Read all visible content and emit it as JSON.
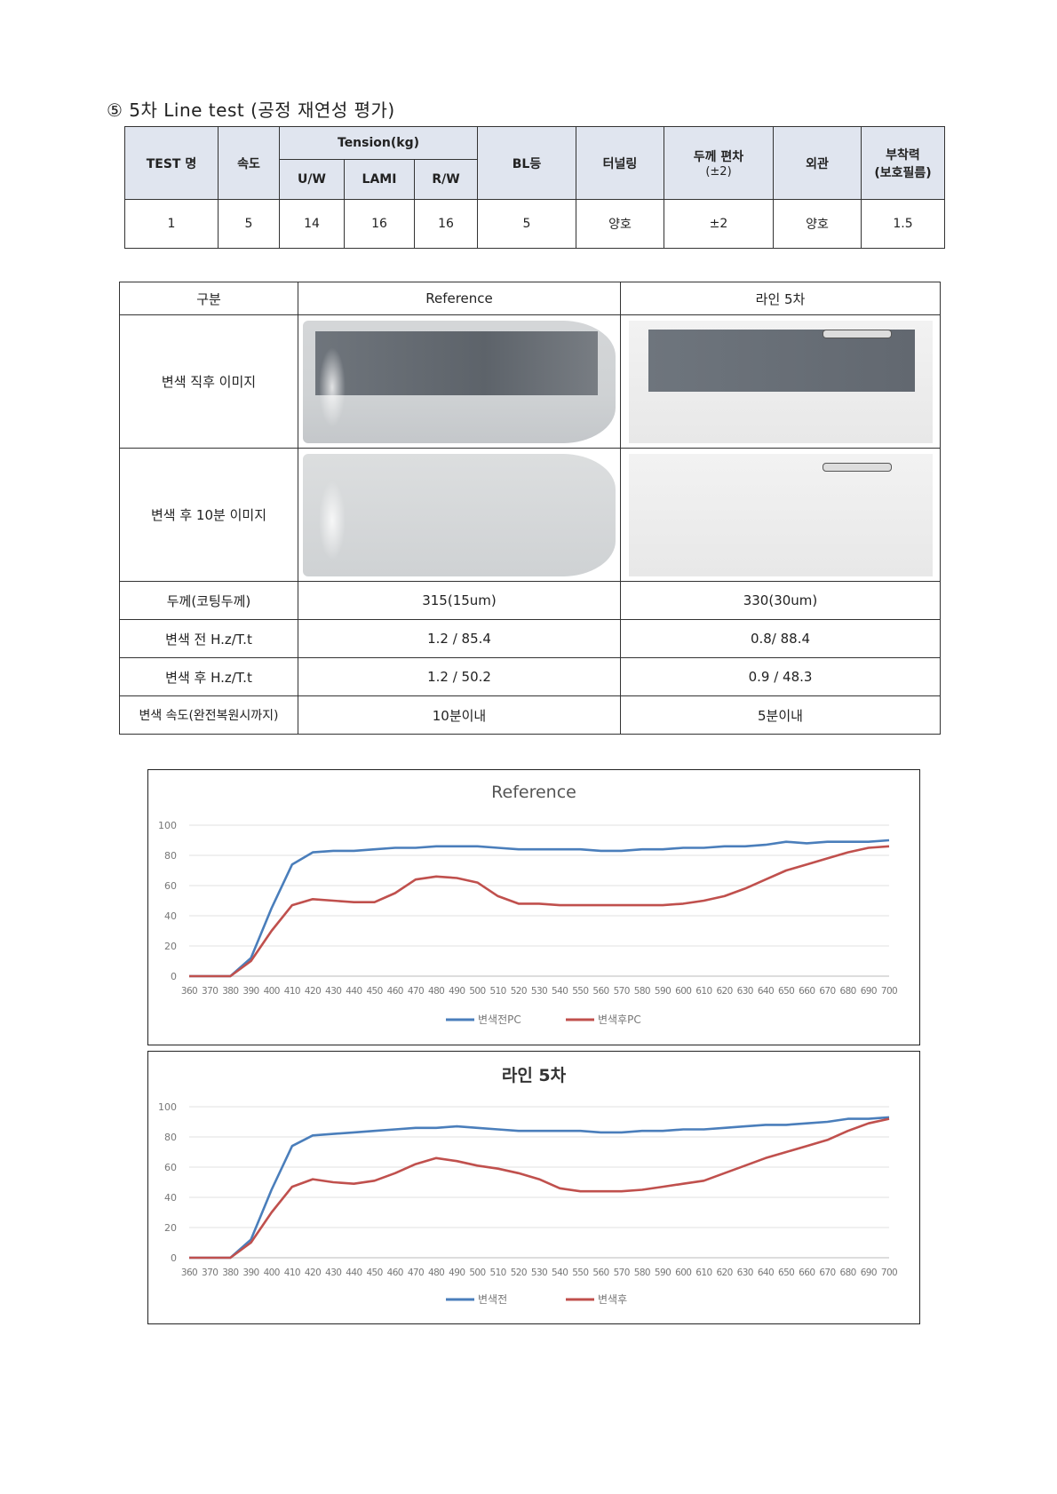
{
  "section_title": "⑤ 5차 Line test (공정 재연성 평가)",
  "table1": {
    "headers": {
      "test_name": "TEST 명",
      "speed": "속도",
      "tension": "Tension(kg)",
      "uw": "U/W",
      "lami": "LAMI",
      "rw": "R/W",
      "bl": "BL등",
      "tunneling": "터널링",
      "thickness_dev": "두께 편차",
      "thickness_dev_sub": "(±2)",
      "appearance": "외관",
      "adhesion": "부착력",
      "adhesion_sub": "(보호필름)"
    },
    "row": [
      "1",
      "5",
      "14",
      "16",
      "16",
      "5",
      "양호",
      "±2",
      "양호",
      "1.5"
    ]
  },
  "table2": {
    "headers": [
      "구분",
      "Reference",
      "라인 5차"
    ],
    "image_rows": [
      "변색 직후 이미지",
      "변색 후 10분 이미지"
    ],
    "rows": [
      {
        "label": "두께(코팅두께)",
        "ref": "315(15um)",
        "line": "330(30um)"
      },
      {
        "label": "변색 전 H.z/T.t",
        "ref": "1.2 / 85.4",
        "line": "0.8/ 88.4"
      },
      {
        "label": "변색 후 H.z/T.t",
        "ref": "1.2 / 50.2",
        "line": "0.9 / 48.3"
      },
      {
        "label": "변색 속도(완전복원시까지)",
        "ref": "10분이내",
        "line": "5분이내"
      }
    ]
  },
  "colors": {
    "before": "#4a7ebb",
    "after": "#c0504d"
  },
  "chart_data": [
    {
      "type": "line",
      "title": "Reference",
      "x": [
        360,
        370,
        380,
        390,
        400,
        410,
        420,
        430,
        440,
        450,
        460,
        470,
        480,
        490,
        500,
        510,
        520,
        530,
        540,
        550,
        560,
        570,
        580,
        590,
        600,
        610,
        620,
        630,
        640,
        650,
        660,
        670,
        680,
        690,
        700
      ],
      "ylim": [
        0,
        100
      ],
      "yticks": [
        0,
        20,
        40,
        60,
        80,
        100
      ],
      "series": [
        {
          "name": "변색전PC",
          "values": [
            0,
            0,
            0,
            12,
            45,
            74,
            82,
            83,
            83,
            84,
            85,
            85,
            86,
            86,
            86,
            85,
            84,
            84,
            84,
            84,
            83,
            83,
            84,
            84,
            85,
            85,
            86,
            86,
            87,
            89,
            88,
            89,
            89,
            89,
            90
          ]
        },
        {
          "name": "변색후PC",
          "values": [
            0,
            0,
            0,
            10,
            30,
            47,
            51,
            50,
            49,
            49,
            55,
            64,
            66,
            65,
            62,
            53,
            48,
            48,
            47,
            47,
            47,
            47,
            47,
            47,
            48,
            50,
            53,
            58,
            64,
            70,
            74,
            78,
            82,
            85,
            86
          ]
        }
      ]
    },
    {
      "type": "line",
      "title": "라인 5차",
      "x": [
        360,
        370,
        380,
        390,
        400,
        410,
        420,
        430,
        440,
        450,
        460,
        470,
        480,
        490,
        500,
        510,
        520,
        530,
        540,
        550,
        560,
        570,
        580,
        590,
        600,
        610,
        620,
        630,
        640,
        650,
        660,
        670,
        680,
        690,
        700
      ],
      "ylim": [
        0,
        100
      ],
      "yticks": [
        0,
        20,
        40,
        60,
        80,
        100
      ],
      "series": [
        {
          "name": "변색전",
          "values": [
            0,
            0,
            0,
            12,
            45,
            74,
            81,
            82,
            83,
            84,
            85,
            86,
            86,
            87,
            86,
            85,
            84,
            84,
            84,
            84,
            83,
            83,
            84,
            84,
            85,
            85,
            86,
            87,
            88,
            88,
            89,
            90,
            92,
            92,
            93
          ]
        },
        {
          "name": "변색후",
          "values": [
            0,
            0,
            0,
            10,
            30,
            47,
            52,
            50,
            49,
            51,
            56,
            62,
            66,
            64,
            61,
            59,
            56,
            52,
            46,
            44,
            44,
            44,
            45,
            47,
            49,
            51,
            56,
            61,
            66,
            70,
            74,
            78,
            84,
            89,
            92
          ]
        }
      ]
    }
  ]
}
